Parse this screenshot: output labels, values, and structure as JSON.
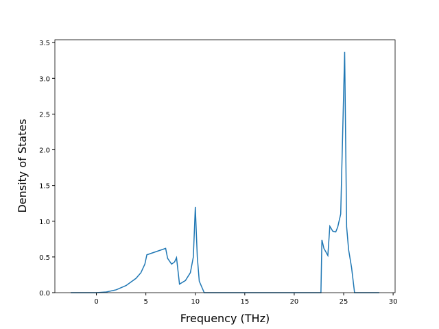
{
  "chart_data": {
    "type": "line",
    "xlabel": "Frequency (THz)",
    "ylabel": "Density of States",
    "x": [
      -2.6,
      0,
      1,
      2,
      3,
      4,
      4.5,
      4.9,
      5.1,
      7,
      7.2,
      7.6,
      7.9,
      8.1,
      8.4,
      9,
      9.5,
      9.8,
      10,
      10.2,
      10.4,
      10.9,
      22.7,
      22.8,
      23,
      23.4,
      23.6,
      23.9,
      24.2,
      24.4,
      24.7,
      25.1,
      25.3,
      25.5,
      25.8,
      26.1,
      28.6
    ],
    "series": [
      {
        "color": "#1f77b4",
        "values": [
          0,
          0,
          0.01,
          0.04,
          0.1,
          0.2,
          0.28,
          0.4,
          0.53,
          0.62,
          0.48,
          0.4,
          0.43,
          0.49,
          0.12,
          0.17,
          0.28,
          0.5,
          1.2,
          0.5,
          0.16,
          0,
          0,
          0.74,
          0.62,
          0.52,
          0.93,
          0.86,
          0.85,
          0.92,
          1.1,
          3.37,
          0.92,
          0.6,
          0.35,
          0,
          0
        ]
      }
    ],
    "xlim": [
      -4.2,
      30.2
    ],
    "ylim": [
      0,
      3.54
    ],
    "xticks": [
      0,
      5,
      10,
      15,
      20,
      25,
      30
    ],
    "yticks": [
      {
        "value": 0,
        "label": "0.0"
      },
      {
        "value": 0.5,
        "label": "0.5"
      },
      {
        "value": 1,
        "label": "1.0"
      },
      {
        "value": 1.5,
        "label": "1.5"
      },
      {
        "value": 2,
        "label": "2.0"
      },
      {
        "value": 2.5,
        "label": "2.5"
      },
      {
        "value": 3,
        "label": "3.0"
      },
      {
        "value": 3.5,
        "label": "3.5"
      }
    ]
  }
}
